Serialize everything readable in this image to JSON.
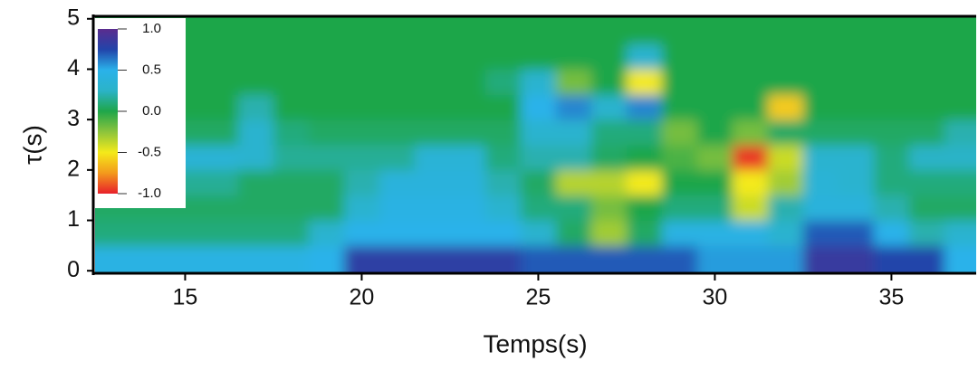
{
  "chart_data": {
    "type": "heatmap",
    "xlabel": "Temps(s)",
    "ylabel": "τ(s)",
    "xlim": [
      12.45,
      37.4
    ],
    "ylim": [
      -0.05,
      5.05
    ],
    "xticks": [
      15,
      20,
      25,
      30,
      35
    ],
    "yticks": [
      0,
      1,
      2,
      3,
      4,
      5
    ],
    "x": [
      13,
      14,
      15,
      16,
      17,
      18,
      19,
      20,
      21,
      22,
      23,
      24,
      25,
      26,
      27,
      28,
      29,
      30,
      31,
      32,
      33,
      34,
      35,
      36,
      37
    ],
    "y": [
      0.25,
      0.75,
      1.25,
      1.75,
      2.25,
      2.75,
      3.25,
      3.75,
      4.25,
      4.75
    ],
    "z": [
      [
        0.45,
        0.45,
        0.45,
        0.45,
        0.45,
        0.45,
        0.5,
        0.8,
        0.8,
        0.8,
        0.8,
        0.8,
        0.7,
        0.7,
        0.7,
        0.7,
        0.7,
        0.55,
        0.55,
        0.55,
        0.85,
        0.85,
        0.75,
        0.75,
        0.5
      ],
      [
        0.1,
        0.1,
        0.1,
        0.1,
        0.1,
        0.1,
        0.3,
        0.5,
        0.5,
        0.5,
        0.5,
        0.5,
        0.3,
        0.05,
        -0.3,
        0.05,
        0.45,
        0.45,
        0.45,
        0.3,
        0.7,
        0.7,
        0.5,
        0.2,
        0.3
      ],
      [
        0.05,
        0.05,
        0.05,
        0.05,
        0.05,
        0.05,
        0.05,
        0.3,
        0.45,
        0.45,
        0.45,
        0.3,
        0.1,
        0.1,
        -0.2,
        0,
        0.1,
        0.1,
        -0.4,
        0.2,
        0.4,
        0.4,
        0.2,
        0.05,
        0.05
      ],
      [
        0.05,
        0.05,
        0.15,
        0.15,
        0.05,
        0.05,
        0.05,
        0.2,
        0.4,
        0.4,
        0.4,
        0.2,
        0.05,
        -0.35,
        -0.35,
        -0.5,
        0,
        0,
        -0.5,
        -0.3,
        0.35,
        0.3,
        0.1,
        0.1,
        0.1
      ],
      [
        0.3,
        0.3,
        0.35,
        0.35,
        0.3,
        0.15,
        0.15,
        0.15,
        0.15,
        0.35,
        0.35,
        0.1,
        0.2,
        0.2,
        0.05,
        0,
        -0.1,
        -0.2,
        -0.95,
        -0.4,
        0.3,
        0.3,
        0.1,
        0.25,
        0.25
      ],
      [
        0.05,
        0.05,
        0.05,
        0.05,
        0.3,
        0.1,
        0.05,
        0.05,
        0.05,
        0.05,
        0.05,
        0.05,
        0.3,
        0.3,
        0.1,
        0.1,
        -0.2,
        0,
        -0.2,
        0.05,
        0.05,
        0.05,
        0.05,
        0.05,
        0.2
      ],
      [
        0,
        0,
        0,
        0,
        0.2,
        0,
        0,
        0,
        0,
        0,
        0,
        0,
        0.5,
        0.6,
        0.3,
        0.6,
        0,
        0,
        0,
        -0.6,
        0,
        0,
        0,
        0,
        0
      ],
      [
        0,
        0,
        0,
        0,
        0,
        0,
        0,
        0,
        0,
        0,
        0,
        0.1,
        0.3,
        -0.2,
        0,
        -0.5,
        0,
        0,
        0,
        0,
        0,
        0,
        0,
        0,
        0
      ],
      [
        0,
        0,
        0,
        0,
        0,
        0,
        0,
        0,
        0,
        0,
        0,
        0,
        0,
        0,
        0,
        0.3,
        0,
        0,
        0,
        0,
        0,
        0,
        0,
        0,
        0
      ],
      [
        0,
        0,
        0,
        0,
        0,
        0,
        0,
        0,
        0,
        0,
        0,
        0,
        0,
        0,
        0,
        0,
        0,
        0,
        0,
        0,
        0,
        0,
        0,
        0,
        0
      ]
    ],
    "zlim": [
      -1,
      1
    ],
    "colorbar_ticks": [
      {
        "value": 1,
        "label": "1.0"
      },
      0.5,
      {
        "value": 0,
        "label": "0.0"
      },
      -0.5,
      {
        "value": -1,
        "label": "-1.0"
      }
    ],
    "colors": [
      "#e8202a",
      "#f39a1c",
      "#f4ea1a",
      "#8cc43c",
      "#1fa64a",
      "#2bb3c8",
      "#2ab2ea",
      "#2244aa",
      "#5b2c8e"
    ]
  }
}
